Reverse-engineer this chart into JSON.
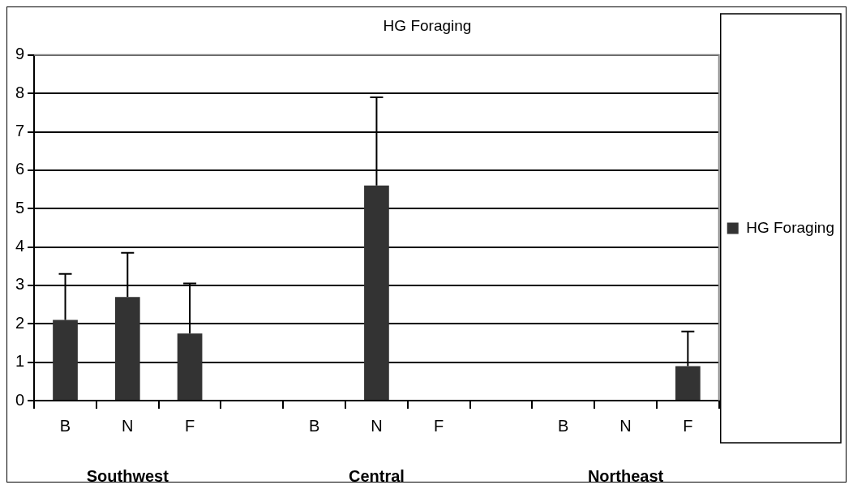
{
  "chart_data": {
    "type": "bar",
    "title": "HG Foraging",
    "categories": [
      "B",
      "N",
      "F",
      null,
      "B",
      "N",
      "F",
      null,
      "B",
      "N",
      "F"
    ],
    "series": [
      {
        "name": "HG Foraging",
        "color": "#333333",
        "values": [
          2.1,
          2.7,
          1.75,
          null,
          null,
          5.6,
          null,
          null,
          null,
          null,
          0.9
        ],
        "errors": [
          [
            2.1,
            3.3
          ],
          [
            2.7,
            3.85
          ],
          [
            1.75,
            3.05
          ],
          null,
          null,
          [
            5.6,
            7.9
          ],
          null,
          null,
          null,
          null,
          [
            0.9,
            1.8
          ]
        ]
      }
    ],
    "annotations": [
      "Southwest",
      "Central",
      "Northeast"
    ],
    "ylim": [
      0,
      9
    ],
    "yticks": [
      0,
      1,
      2,
      3,
      4,
      5,
      6,
      7,
      8,
      9
    ],
    "grid": "y",
    "legend": "right"
  }
}
